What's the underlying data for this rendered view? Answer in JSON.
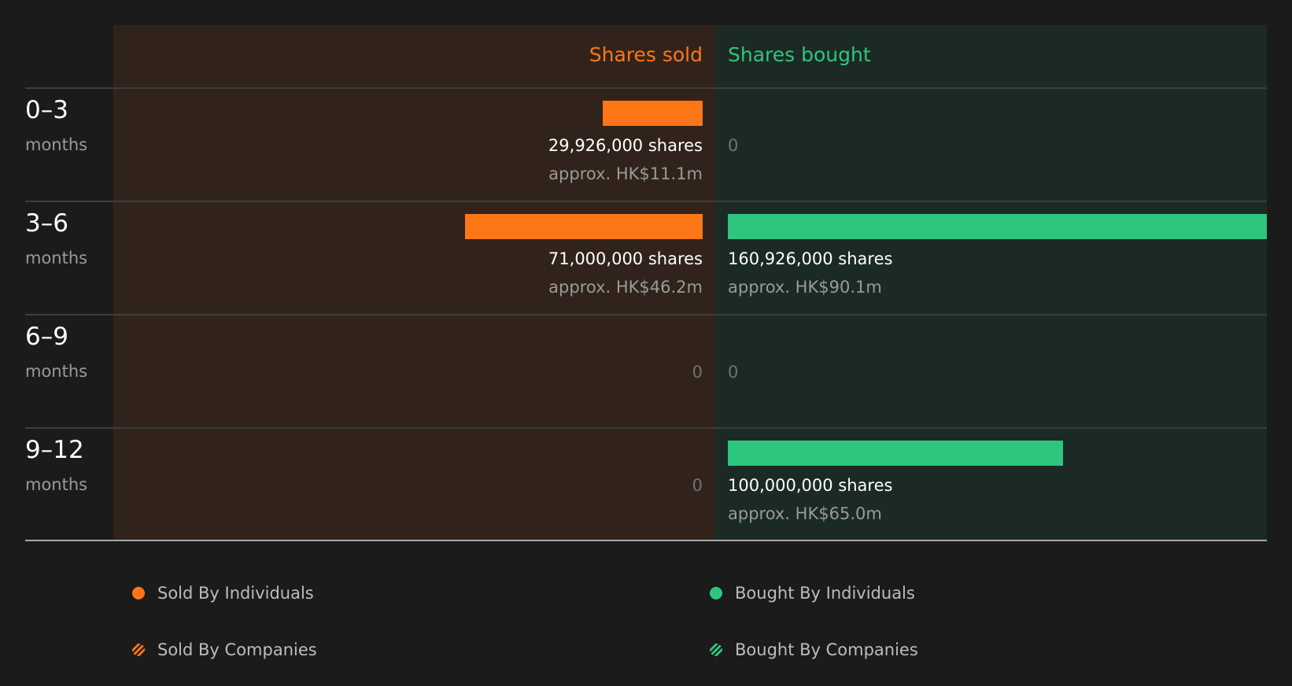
{
  "chart_data": {
    "type": "bar",
    "columns": {
      "sold": "Shares sold",
      "bought": "Shares bought"
    },
    "categories": [
      {
        "period": "0–3",
        "unit": "months"
      },
      {
        "period": "3–6",
        "unit": "months"
      },
      {
        "period": "6–9",
        "unit": "months"
      },
      {
        "period": "9–12",
        "unit": "months"
      }
    ],
    "series": [
      {
        "name": "Shares sold",
        "values": [
          29926000,
          71000000,
          0,
          0
        ],
        "labels": [
          "29,926,000 shares",
          "71,000,000 shares",
          "0",
          "0"
        ],
        "approx": [
          "approx. HK$11.1m",
          "approx. HK$46.2m",
          "",
          ""
        ]
      },
      {
        "name": "Shares bought",
        "values": [
          0,
          160926000,
          0,
          100000000
        ],
        "labels": [
          "0",
          "160,926,000 shares",
          "0",
          "100,000,000 shares"
        ],
        "approx": [
          "",
          "approx. HK$90.1m",
          "",
          "approx. HK$65.0m"
        ]
      }
    ],
    "max_value": 160926000,
    "colors": {
      "sold": "#ff7617",
      "bought": "#2ec67e"
    },
    "legend": [
      {
        "label": "Sold By Individuals",
        "kind": "solid",
        "side": "sold"
      },
      {
        "label": "Bought By Individuals",
        "kind": "solid",
        "side": "bought"
      },
      {
        "label": "Sold By Companies",
        "kind": "hatched",
        "side": "sold"
      },
      {
        "label": "Bought By Companies",
        "kind": "hatched",
        "side": "bought"
      }
    ]
  }
}
